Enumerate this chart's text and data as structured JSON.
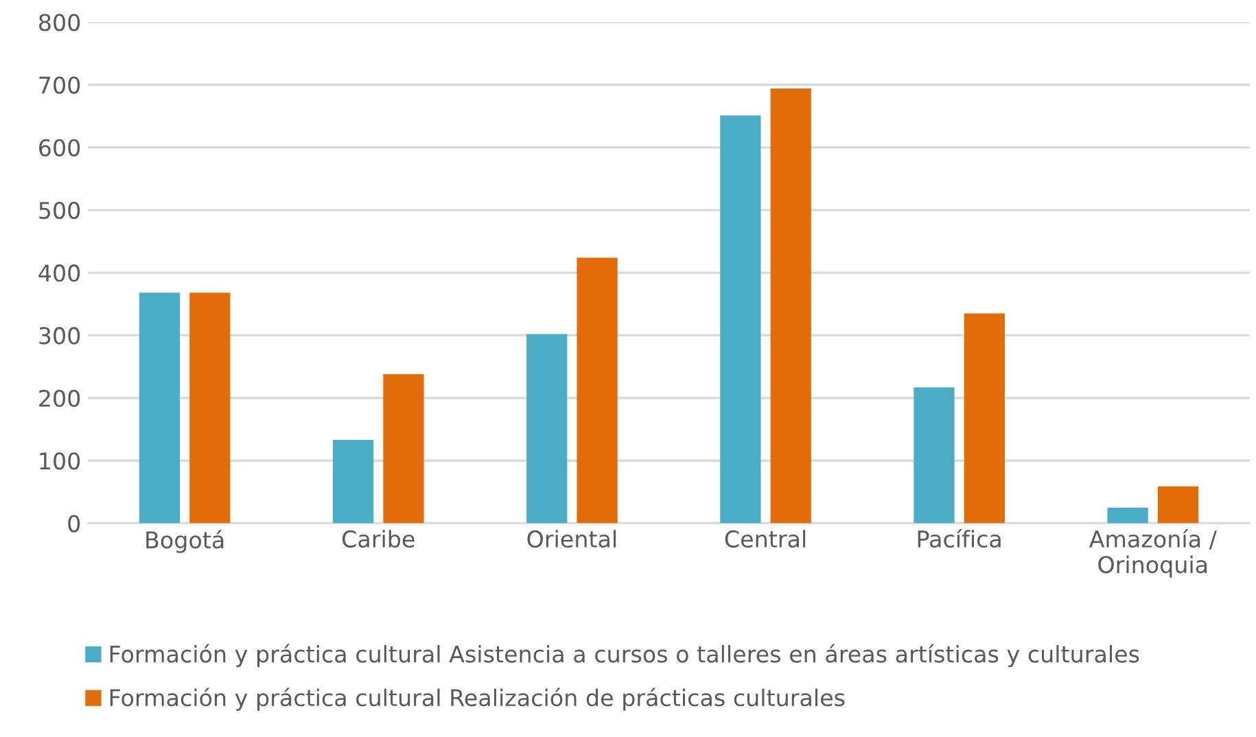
{
  "chart_data": {
    "type": "bar",
    "categories": [
      "Bogotá",
      "Caribe",
      "Oriental",
      "Central",
      "Pacífica",
      "Amazonía /\nOrinoquia"
    ],
    "series": [
      {
        "name": "Formación y práctica cultural Asistencia a cursos o talleres en áreas artísticas y culturales",
        "color": "#4bacc6",
        "values": [
          368,
          133,
          302,
          651,
          217,
          25
        ]
      },
      {
        "name": "Formación y práctica cultural Realización de prácticas culturales",
        "color": "#e36c0a",
        "values": [
          368,
          238,
          424,
          694,
          335,
          59
        ]
      }
    ],
    "ylim": [
      0,
      800
    ],
    "yticks": [
      0,
      100,
      200,
      300,
      400,
      500,
      600,
      700,
      800
    ],
    "grid": "y",
    "legend": "bottom"
  }
}
